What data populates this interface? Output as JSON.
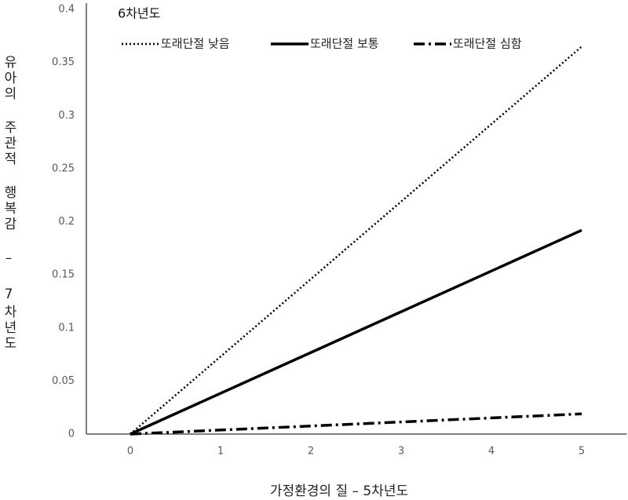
{
  "chart_data": {
    "type": "line",
    "x_label": "가정환경의 질 – 5차년도",
    "y_label": "유아의 주관적 행복감 – 7차년도",
    "legend_title": "6차년도",
    "legend_position": "top-left",
    "xlim": [
      -0.5,
      5.5
    ],
    "xticks": [
      0,
      1,
      2,
      3,
      4,
      5
    ],
    "ylim": [
      0,
      0.4
    ],
    "yticks": [
      0,
      0.05,
      0.1,
      0.15,
      0.2,
      0.25,
      0.3,
      0.35,
      0.4
    ],
    "series": [
      {
        "name": "또래단절 낮음",
        "color": "#000000",
        "style": "dotted",
        "x": [
          0,
          5
        ],
        "values": [
          0,
          0.365
        ]
      },
      {
        "name": "또래단절 보통",
        "color": "#000000",
        "style": "solid",
        "x": [
          0,
          5
        ],
        "values": [
          0,
          0.192
        ]
      },
      {
        "name": "또래단절 심함",
        "color": "#000000",
        "style": "dashdot",
        "x": [
          0,
          5
        ],
        "values": [
          0,
          0.019
        ]
      }
    ]
  }
}
